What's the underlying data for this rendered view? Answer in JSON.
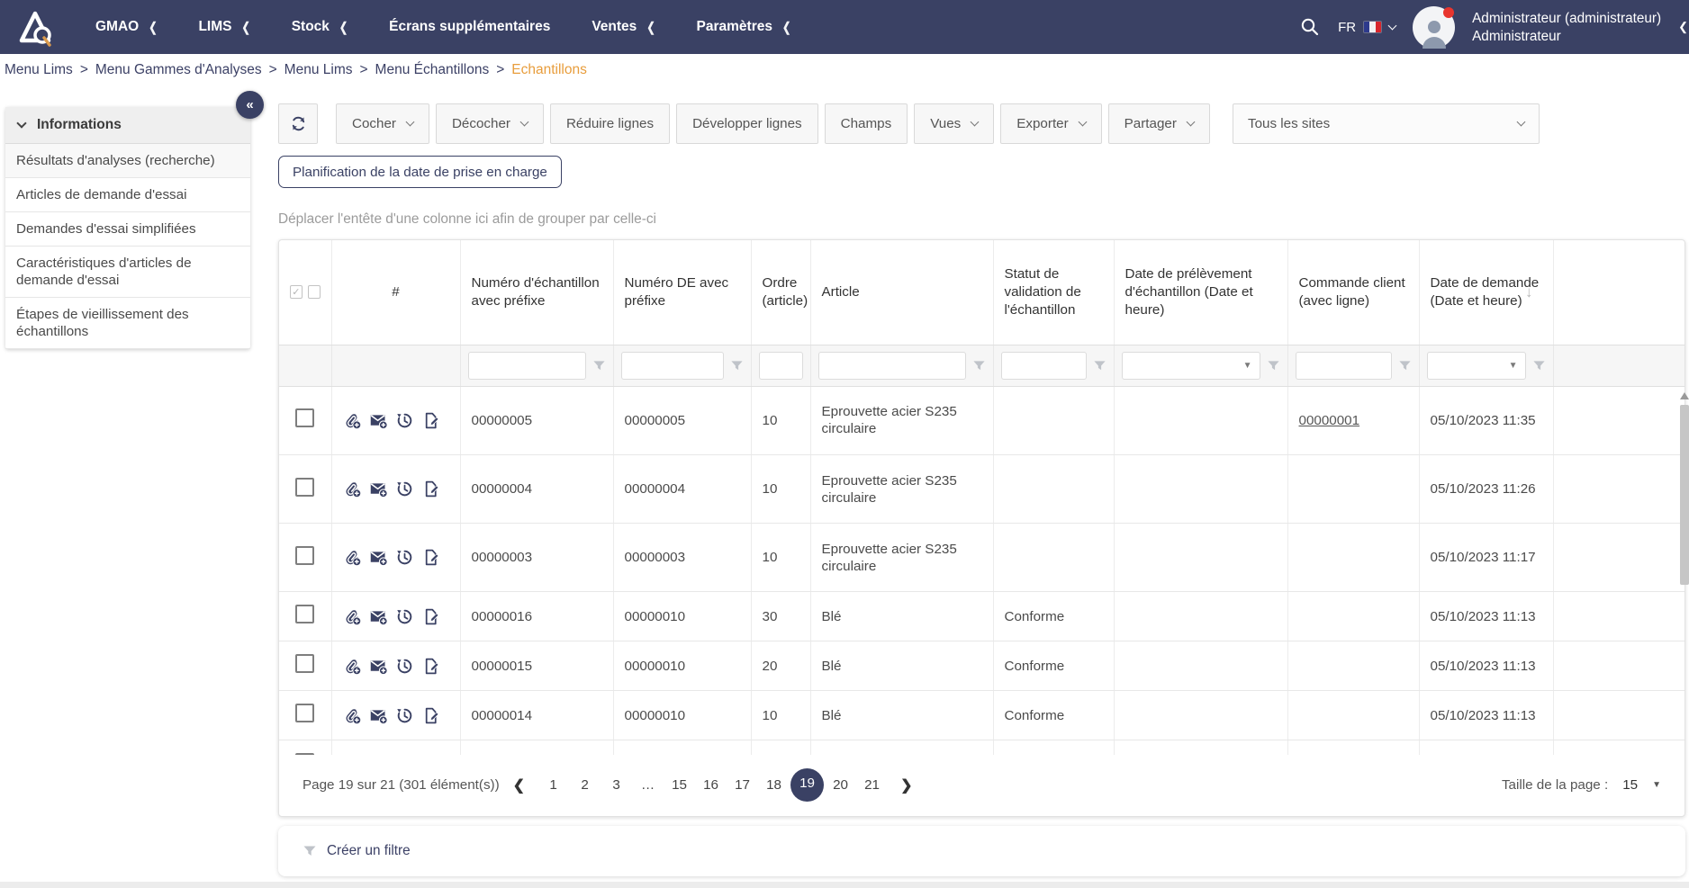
{
  "topnav": {
    "logo_alt": "AQ",
    "items": [
      {
        "label": "GMAO",
        "chevron": true
      },
      {
        "label": "LIMS",
        "chevron": true
      },
      {
        "label": "Stock",
        "chevron": true
      },
      {
        "label": "Écrans supplémentaires",
        "chevron": false
      },
      {
        "label": "Ventes",
        "chevron": true
      },
      {
        "label": "Paramètres",
        "chevron": true
      }
    ],
    "language": "FR",
    "user": {
      "name": "Administrateur (administrateur)",
      "role": "Administrateur"
    }
  },
  "breadcrumb": {
    "items": [
      "Menu Lims",
      "Menu Gammes d'Analyses",
      "Menu Lims",
      "Menu Échantillons"
    ],
    "current": "Echantillons",
    "separator": ">"
  },
  "sidebar": {
    "header": "Informations",
    "items": [
      "Résultats d'analyses (recherche)",
      "Articles de demande d'essai",
      "Demandes d'essai simplifiées",
      "Caractéristiques d'articles de demande d'essai",
      "Étapes de vieillissement des échantillons"
    ]
  },
  "toolbar": {
    "buttons": [
      {
        "label": "Cocher",
        "dropdown": true
      },
      {
        "label": "Décocher",
        "dropdown": true
      },
      {
        "label": "Réduire lignes",
        "dropdown": false
      },
      {
        "label": "Développer lignes",
        "dropdown": false
      },
      {
        "label": "Champs",
        "dropdown": false
      },
      {
        "label": "Vues",
        "dropdown": true
      },
      {
        "label": "Exporter",
        "dropdown": true
      },
      {
        "label": "Partager",
        "dropdown": true
      }
    ],
    "site_filter": {
      "value": "Tous les sites"
    }
  },
  "planification_button": "Planification de la date de prise en charge",
  "group_hint": "Déplacer l'entête d'une colonne ici afin de grouper par celle-ci",
  "table": {
    "columns": [
      "",
      "#",
      "Numéro d'échantillon avec préfixe",
      "Numéro DE avec préfixe",
      "Ordre (article)",
      "Article",
      "Statut de validation de l'échantillon",
      "Date de prélèvement d'échantillon (Date et heure)",
      "Commande client (avec ligne)",
      "Date de demande (Date et heure)",
      ""
    ],
    "sorted_column": "Date de demande (Date et heure)",
    "sort_direction": "desc",
    "row_action_icons": [
      "attach-add-icon",
      "mail-add-icon",
      "history-icon",
      "edit-document-icon"
    ],
    "rows": [
      {
        "num": "00000005",
        "de": "00000005",
        "ordre": "10",
        "article": "Eprouvette acier S235 circulaire",
        "statut": "",
        "prelevement": "",
        "commande": "00000001",
        "demande": "05/10/2023 11:35",
        "partial": false
      },
      {
        "num": "00000004",
        "de": "00000004",
        "ordre": "10",
        "article": "Eprouvette acier S235 circulaire",
        "statut": "",
        "prelevement": "",
        "commande": "",
        "demande": "05/10/2023 11:26",
        "partial": false
      },
      {
        "num": "00000003",
        "de": "00000003",
        "ordre": "10",
        "article": "Eprouvette acier S235 circulaire",
        "statut": "",
        "prelevement": "",
        "commande": "",
        "demande": "05/10/2023 11:17",
        "partial": false
      },
      {
        "num": "00000016",
        "de": "00000010",
        "ordre": "30",
        "article": "Blé",
        "statut": "Conforme",
        "prelevement": "",
        "commande": "",
        "demande": "05/10/2023 11:13",
        "partial": false
      },
      {
        "num": "00000015",
        "de": "00000010",
        "ordre": "20",
        "article": "Blé",
        "statut": "Conforme",
        "prelevement": "",
        "commande": "",
        "demande": "05/10/2023 11:13",
        "partial": false
      },
      {
        "num": "00000014",
        "de": "00000010",
        "ordre": "10",
        "article": "Blé",
        "statut": "Conforme",
        "prelevement": "",
        "commande": "",
        "demande": "05/10/2023 11:13",
        "partial": false
      },
      {
        "num": "",
        "de": "",
        "ordre": "",
        "article": "",
        "statut": "",
        "prelevement": "",
        "commande": "",
        "demande": "",
        "partial": true
      }
    ]
  },
  "pagination": {
    "info": "Page 19 sur 21 (301 élément(s))",
    "pages": [
      "1",
      "2",
      "3",
      "…",
      "15",
      "16",
      "17",
      "18",
      "19",
      "20",
      "21"
    ],
    "active_page": "19",
    "page_size_label": "Taille de la page :",
    "page_size": "15"
  },
  "filter_bar": {
    "label": "Créer un filtre"
  },
  "colors": {
    "navbar_bg": "#3a4164",
    "accent_orange": "#e89d3c",
    "icon_navy": "#3a4164",
    "active_page_bg": "#3a4164",
    "status_dot_red": "#e8352e"
  }
}
